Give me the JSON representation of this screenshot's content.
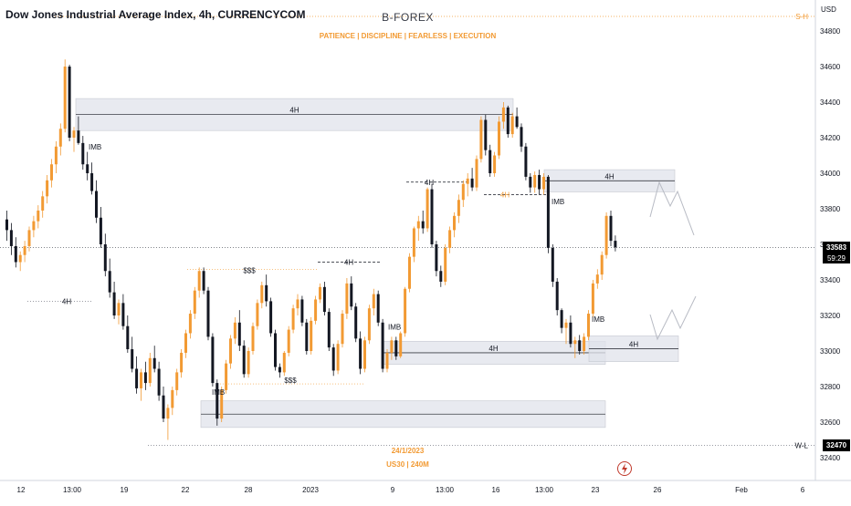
{
  "header": {
    "title": "Dow Jones Industrial Average Index, 4h, CURRENCYCOM",
    "brand": "B-FOREX",
    "motto": "PATIENCE | DISCIPLINE | FEARLESS | EXECUTION",
    "date": "24/1/2023",
    "symbol_tf": "US30 | 240M",
    "currency": "USD"
  },
  "price_tags": {
    "last": "33583",
    "countdown": "59:29",
    "low": "32470"
  },
  "colors": {
    "bull": "#f29a33",
    "bear": "#131722",
    "zone_fill": "#e0e3eb",
    "zone_line": "#7b7f8a",
    "accent": "#f29a33",
    "grid_dotted": "#787b86"
  },
  "chart_data": {
    "type": "candlestick",
    "symbol": "Dow Jones Industrial Average Index",
    "timeframe": "4h",
    "source": "CURRENCYCOM",
    "y_axis": {
      "ticks": [
        32400,
        32600,
        32800,
        33000,
        33200,
        33400,
        33600,
        33800,
        34000,
        34200,
        34400,
        34600,
        34800
      ],
      "range": [
        32330,
        34920
      ]
    },
    "x_axis": {
      "ticks": [
        "12",
        "13:00",
        "19",
        "22",
        "28",
        "2023",
        "9",
        "13:00",
        "16",
        "13:00",
        "23",
        "26",
        "Feb",
        "6"
      ]
    },
    "levels": {
      "last": 33583,
      "high_label": "S-H",
      "high_value": 34890,
      "low_label": "W-L",
      "low_value": 32470
    },
    "zones": [
      {
        "label": "4H",
        "from": 34240,
        "to": 34420
      },
      {
        "label": "4H",
        "from": 33895,
        "to": 34020
      },
      {
        "label": "4H",
        "from": 32925,
        "to": 33055
      },
      {
        "label": "4H",
        "from": 32940,
        "to": 33085
      },
      {
        "label": "",
        "from": 32570,
        "to": 32720
      }
    ],
    "annotations": [
      {
        "text": "IMB",
        "price": 34150
      },
      {
        "text": "4H",
        "price": 33280
      },
      {
        "text": "$$$",
        "price": 33455
      },
      {
        "text": "$$$",
        "price": 32835
      },
      {
        "text": "IMB",
        "price": 32770
      },
      {
        "text": "4H",
        "price": 33500
      },
      {
        "text": "IMB",
        "price": 33135
      },
      {
        "text": "4H",
        "price": 33950
      },
      {
        "text": "4H",
        "price": 33880
      },
      {
        "text": "IMB",
        "price": 33840
      },
      {
        "text": "IMB",
        "price": 33180
      }
    ],
    "candles": [
      [
        33740,
        33790,
        33620,
        33680
      ],
      [
        33680,
        33720,
        33540,
        33590
      ],
      [
        33590,
        33640,
        33470,
        33500
      ],
      [
        33500,
        33560,
        33450,
        33540
      ],
      [
        33540,
        33620,
        33500,
        33590
      ],
      [
        33590,
        33700,
        33560,
        33680
      ],
      [
        33680,
        33760,
        33640,
        33730
      ],
      [
        33730,
        33820,
        33690,
        33790
      ],
      [
        33790,
        33900,
        33750,
        33870
      ],
      [
        33870,
        33990,
        33830,
        33960
      ],
      [
        33960,
        34080,
        33920,
        34050
      ],
      [
        34050,
        34180,
        34000,
        34150
      ],
      [
        34150,
        34280,
        34100,
        34250
      ],
      [
        34250,
        34640,
        34230,
        34600
      ],
      [
        34600,
        34610,
        34180,
        34200
      ],
      [
        34200,
        34260,
        34120,
        34240
      ],
      [
        34240,
        34320,
        34160,
        34170
      ],
      [
        34170,
        34210,
        34020,
        34050
      ],
      [
        34050,
        34120,
        33960,
        34000
      ],
      [
        34000,
        34060,
        33880,
        33900
      ],
      [
        33900,
        33960,
        33720,
        33750
      ],
      [
        33750,
        33810,
        33580,
        33600
      ],
      [
        33600,
        33660,
        33420,
        33450
      ],
      [
        33450,
        33520,
        33300,
        33330
      ],
      [
        33330,
        33390,
        33180,
        33200
      ],
      [
        33200,
        33290,
        33150,
        33270
      ],
      [
        33270,
        33320,
        33120,
        33140
      ],
      [
        33140,
        33200,
        32990,
        33010
      ],
      [
        33010,
        33080,
        32880,
        32900
      ],
      [
        32900,
        32970,
        32760,
        32790
      ],
      [
        32790,
        32900,
        32720,
        32880
      ],
      [
        32880,
        32940,
        32780,
        32820
      ],
      [
        32820,
        32990,
        32800,
        32960
      ],
      [
        32960,
        33030,
        32880,
        32900
      ],
      [
        32900,
        32940,
        32720,
        32750
      ],
      [
        32750,
        32800,
        32600,
        32620
      ],
      [
        32620,
        32700,
        32500,
        32680
      ],
      [
        32680,
        32800,
        32640,
        32780
      ],
      [
        32780,
        32900,
        32750,
        32880
      ],
      [
        32880,
        33010,
        32850,
        32990
      ],
      [
        32990,
        33120,
        32960,
        33100
      ],
      [
        33100,
        33230,
        33070,
        33210
      ],
      [
        33210,
        33360,
        33180,
        33340
      ],
      [
        33340,
        33470,
        33300,
        33450
      ],
      [
        33450,
        33470,
        33320,
        33340
      ],
      [
        33340,
        33360,
        33060,
        33080
      ],
      [
        33080,
        33100,
        32800,
        32820
      ],
      [
        32820,
        32840,
        32580,
        32620
      ],
      [
        32620,
        32800,
        32600,
        32780
      ],
      [
        32780,
        32950,
        32760,
        32930
      ],
      [
        32930,
        33090,
        32900,
        33070
      ],
      [
        33070,
        33190,
        33040,
        33160
      ],
      [
        33160,
        33230,
        33000,
        33030
      ],
      [
        33030,
        33060,
        32850,
        32870
      ],
      [
        32870,
        33020,
        32850,
        33000
      ],
      [
        33000,
        33160,
        32980,
        33140
      ],
      [
        33140,
        33290,
        33120,
        33270
      ],
      [
        33270,
        33390,
        33240,
        33370
      ],
      [
        33370,
        33430,
        33250,
        33280
      ],
      [
        33280,
        33300,
        33080,
        33100
      ],
      [
        33100,
        33120,
        32890,
        32910
      ],
      [
        32910,
        32930,
        32850,
        32880
      ],
      [
        32880,
        33000,
        32860,
        32990
      ],
      [
        32990,
        33140,
        32970,
        33120
      ],
      [
        33120,
        33260,
        33100,
        33240
      ],
      [
        33240,
        33320,
        33200,
        33290
      ],
      [
        33290,
        33310,
        33140,
        33160
      ],
      [
        33160,
        33180,
        32980,
        33000
      ],
      [
        33000,
        33190,
        32980,
        33170
      ],
      [
        33170,
        33310,
        33150,
        33290
      ],
      [
        33290,
        33380,
        33270,
        33360
      ],
      [
        33360,
        33390,
        33200,
        33220
      ],
      [
        33220,
        33240,
        33000,
        33020
      ],
      [
        33020,
        33040,
        32860,
        32890
      ],
      [
        32890,
        33060,
        32870,
        33040
      ],
      [
        33040,
        33230,
        33020,
        33210
      ],
      [
        33210,
        33410,
        33180,
        33380
      ],
      [
        33380,
        33420,
        33230,
        33250
      ],
      [
        33250,
        33270,
        33050,
        33070
      ],
      [
        33070,
        33110,
        32870,
        32900
      ],
      [
        32900,
        33080,
        32880,
        33060
      ],
      [
        33060,
        33260,
        33040,
        33240
      ],
      [
        33240,
        33350,
        33200,
        33320
      ],
      [
        33320,
        33340,
        33140,
        33160
      ],
      [
        33160,
        33180,
        32880,
        32900
      ],
      [
        32900,
        33010,
        32880,
        32990
      ],
      [
        32990,
        33080,
        32950,
        33060
      ],
      [
        33060,
        33080,
        32950,
        32970
      ],
      [
        32970,
        33110,
        32960,
        33100
      ],
      [
        33100,
        33360,
        33080,
        33350
      ],
      [
        33350,
        33550,
        33330,
        33530
      ],
      [
        33530,
        33700,
        33500,
        33690
      ],
      [
        33690,
        33760,
        33620,
        33730
      ],
      [
        33730,
        33790,
        33660,
        33690
      ],
      [
        33690,
        33920,
        33670,
        33910
      ],
      [
        33910,
        33940,
        33580,
        33600
      ],
      [
        33600,
        33620,
        33420,
        33450
      ],
      [
        33450,
        33480,
        33360,
        33390
      ],
      [
        33390,
        33600,
        33370,
        33580
      ],
      [
        33580,
        33700,
        33550,
        33680
      ],
      [
        33680,
        33780,
        33640,
        33760
      ],
      [
        33760,
        33880,
        33720,
        33850
      ],
      [
        33850,
        33960,
        33810,
        33940
      ],
      [
        33940,
        34000,
        33870,
        33970
      ],
      [
        33970,
        34030,
        33900,
        33920
      ],
      [
        33920,
        34100,
        33900,
        34080
      ],
      [
        34080,
        34320,
        34060,
        34300
      ],
      [
        34300,
        34330,
        34100,
        34130
      ],
      [
        34130,
        34160,
        33980,
        34000
      ],
      [
        34000,
        34120,
        33980,
        34100
      ],
      [
        34100,
        34320,
        34080,
        34290
      ],
      [
        34290,
        34400,
        34250,
        34370
      ],
      [
        34370,
        34380,
        34200,
        34220
      ],
      [
        34220,
        34340,
        34200,
        34320
      ],
      [
        34320,
        34370,
        34250,
        34260
      ],
      [
        34260,
        34280,
        34120,
        34150
      ],
      [
        34150,
        34170,
        33960,
        33980
      ],
      [
        33980,
        34000,
        33890,
        33920
      ],
      [
        33920,
        34010,
        33890,
        33990
      ],
      [
        33990,
        34020,
        33880,
        33910
      ],
      [
        33910,
        34000,
        33880,
        33980
      ],
      [
        33980,
        33990,
        33550,
        33580
      ],
      [
        33580,
        33600,
        33360,
        33390
      ],
      [
        33390,
        33410,
        33200,
        33230
      ],
      [
        33230,
        33240,
        33100,
        33130
      ],
      [
        33130,
        33180,
        33040,
        33160
      ],
      [
        33160,
        33200,
        33020,
        33040
      ],
      [
        33040,
        33080,
        32960,
        33060
      ],
      [
        33060,
        33090,
        32980,
        33000
      ],
      [
        33000,
        33100,
        32980,
        33080
      ],
      [
        33080,
        33230,
        33060,
        33210
      ],
      [
        33210,
        33400,
        33190,
        33380
      ],
      [
        33380,
        33460,
        33350,
        33430
      ],
      [
        33430,
        33560,
        33400,
        33540
      ],
      [
        33540,
        33780,
        33520,
        33760
      ],
      [
        33760,
        33790,
        33590,
        33620
      ],
      [
        33620,
        33650,
        33560,
        33583
      ]
    ]
  }
}
